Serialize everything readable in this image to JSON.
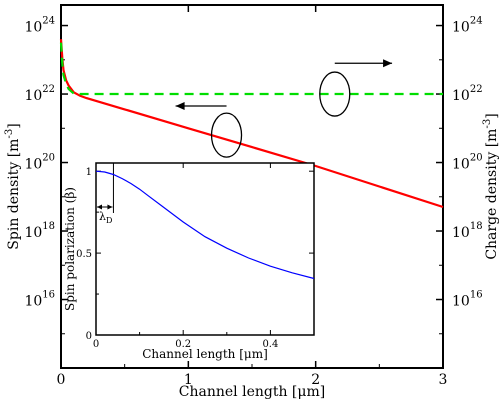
{
  "chart_data": [
    {
      "type": "line",
      "title": "",
      "xlabel": "Channel length [μm]",
      "ylabel_left": "Spin density [m",
      "ylabel_left_exp": "-3",
      "ylabel_left_close": "]",
      "ylabel_right": "Charge density [m",
      "ylabel_right_exp": "-3",
      "ylabel_right_close": "]",
      "xlim": [
        0,
        3
      ],
      "ylim_log10": [
        14,
        24.6
      ],
      "y_scale": "log",
      "x_ticks": [
        "0",
        "1",
        "2",
        "3"
      ],
      "x_tick_values": [
        0,
        1,
        2,
        3
      ],
      "y_ticks": [
        {
          "base": "10",
          "exp": "16",
          "value_log10": 16
        },
        {
          "base": "10",
          "exp": "18",
          "value_log10": 18
        },
        {
          "base": "10",
          "exp": "20",
          "value_log10": 20
        },
        {
          "base": "10",
          "exp": "22",
          "value_log10": 22
        },
        {
          "base": "10",
          "exp": "24",
          "value_log10": 24
        }
      ],
      "grid": false,
      "series": [
        {
          "key": "spin",
          "color": "#ff0000",
          "style": "solid",
          "axis": "left",
          "x": [
            0,
            0.01,
            0.02,
            0.04,
            0.06,
            0.08,
            0.1,
            0.15,
            0.2,
            0.5,
            1.0,
            1.5,
            2.0,
            2.5,
            3.0
          ],
          "log10_y": [
            23.6,
            23.05,
            22.7,
            22.4,
            22.25,
            22.15,
            22.05,
            21.95,
            21.88,
            21.55,
            21.0,
            20.45,
            19.9,
            19.3,
            18.7
          ]
        },
        {
          "key": "charge",
          "color": "#00dd00",
          "style": "dashed",
          "axis": "right",
          "x": [
            0,
            0.01,
            0.02,
            0.04,
            0.06,
            0.08,
            0.1,
            0.15,
            0.5,
            1.0,
            2.0,
            3.0
          ],
          "log10_y": [
            23.5,
            22.9,
            22.55,
            22.3,
            22.15,
            22.08,
            22.02,
            22.0,
            22.0,
            22.0,
            22.0,
            22.0
          ]
        }
      ],
      "annotations": [
        {
          "type": "ellipse-arrow",
          "x": 1.3,
          "log10_y": 20.8,
          "arrow_to_x": 0.9,
          "arrow_log10_y": 21.65,
          "direction": "left"
        },
        {
          "type": "ellipse-arrow",
          "x": 2.15,
          "log10_y": 22.0,
          "arrow_to_x": 2.6,
          "arrow_log10_y": 22.9,
          "direction": "right"
        }
      ]
    },
    {
      "type": "line",
      "title": "",
      "xlabel": "Channel length [μm]",
      "ylabel": "Spin polarization (β)",
      "xlim": [
        0,
        0.5
      ],
      "ylim": [
        0,
        1.05
      ],
      "x_ticks": [
        "0",
        "0.2",
        "0.4"
      ],
      "x_tick_values": [
        0,
        0.2,
        0.4
      ],
      "y_ticks": [
        "0",
        "0.5",
        "1"
      ],
      "y_tick_values": [
        0,
        0.5,
        1
      ],
      "grid": false,
      "annotation_label": "λ",
      "annotation_sub": "D",
      "annotation_x": 0.04,
      "series": [
        {
          "key": "beta",
          "color": "#0000ff",
          "x": [
            0,
            0.02,
            0.04,
            0.06,
            0.08,
            0.1,
            0.12,
            0.15,
            0.2,
            0.25,
            0.3,
            0.35,
            0.4,
            0.45,
            0.5
          ],
          "y": [
            1.0,
            0.995,
            0.98,
            0.955,
            0.925,
            0.89,
            0.85,
            0.79,
            0.69,
            0.6,
            0.53,
            0.47,
            0.42,
            0.38,
            0.345
          ]
        }
      ]
    }
  ]
}
